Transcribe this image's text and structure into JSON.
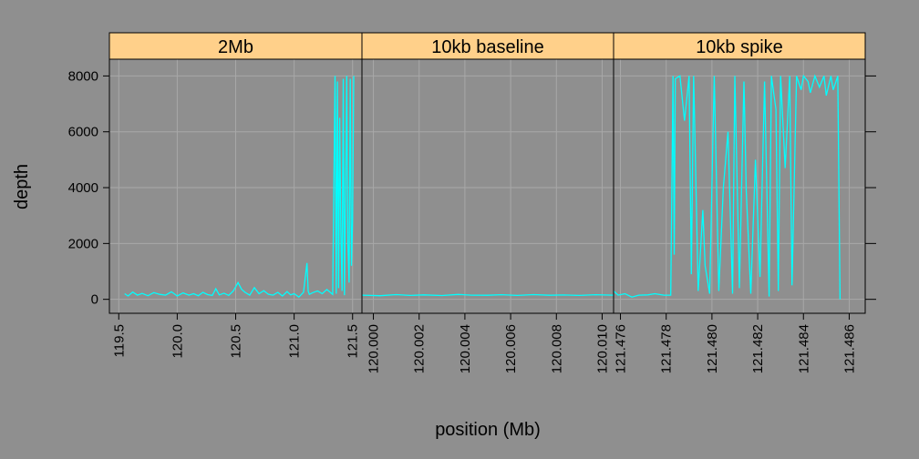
{
  "chart_data": {
    "type": "line",
    "ylabel": "depth",
    "xlabel": "position (Mb)",
    "ylim": [
      -500,
      8600
    ],
    "yticks": [
      0,
      2000,
      4000,
      6000,
      8000
    ],
    "grid": true,
    "colors": {
      "background": "#8f8f8f",
      "strip": "#ffd08a",
      "line": "#00ffff",
      "grid": "#a8a8a8"
    },
    "panels": [
      {
        "strip": "2Mb",
        "xlim": [
          119.42,
          121.58
        ],
        "xticks": [
          119.5,
          120.0,
          120.5,
          121.0,
          121.5
        ],
        "xtick_labels": [
          "119.5",
          "120.0",
          "120.5",
          "121.0",
          "121.5"
        ],
        "x": [
          119.55,
          119.58,
          119.62,
          119.66,
          119.7,
          119.75,
          119.8,
          119.85,
          119.9,
          119.95,
          120.0,
          120.05,
          120.1,
          120.14,
          120.18,
          120.22,
          120.26,
          120.3,
          120.33,
          120.36,
          120.4,
          120.44,
          120.48,
          120.5,
          120.52,
          120.55,
          120.58,
          120.62,
          120.66,
          120.7,
          120.74,
          120.78,
          120.82,
          120.86,
          120.9,
          120.94,
          120.97,
          121.0,
          121.04,
          121.08,
          121.11,
          121.12,
          121.13,
          121.16,
          121.2,
          121.24,
          121.28,
          121.33,
          121.35,
          121.36,
          121.37,
          121.38,
          121.39,
          121.4,
          121.41,
          121.42,
          121.43,
          121.44,
          121.45,
          121.46,
          121.47,
          121.48,
          121.49,
          121.5,
          121.51
        ],
        "y": [
          200,
          120,
          260,
          150,
          210,
          130,
          240,
          180,
          150,
          270,
          120,
          230,
          150,
          200,
          130,
          250,
          170,
          140,
          380,
          160,
          220,
          140,
          300,
          450,
          600,
          360,
          250,
          150,
          420,
          200,
          310,
          180,
          150,
          250,
          120,
          280,
          160,
          200,
          80,
          250,
          1300,
          300,
          180,
          240,
          300,
          200,
          350,
          180,
          8000,
          200,
          7800,
          400,
          6500,
          2400,
          300,
          7900,
          150,
          3500,
          8000,
          2000,
          600,
          7900,
          1200,
          2800,
          8000
        ]
      },
      {
        "strip": "10kb baseline",
        "xlim": [
          119.9995,
          120.0105
        ],
        "xticks": [
          120.0,
          120.002,
          120.004,
          120.006,
          120.008,
          120.01
        ],
        "xtick_labels": [
          "120.000",
          "120.002",
          "120.004",
          "120.006",
          "120.008",
          "120.010"
        ],
        "x": [
          119.9995,
          120.0003,
          120.001,
          120.0016,
          120.0022,
          120.003,
          120.0037,
          120.0043,
          120.005,
          120.0056,
          120.0063,
          120.007,
          120.0077,
          120.0083,
          120.009,
          120.0097,
          120.0105
        ],
        "y": [
          150,
          130,
          170,
          140,
          160,
          135,
          175,
          150,
          145,
          165,
          140,
          170,
          145,
          155,
          140,
          165,
          150
        ]
      },
      {
        "strip": "10kb spike",
        "xlim": [
          121.4757,
          121.4867
        ],
        "xticks": [
          121.476,
          121.478,
          121.48,
          121.482,
          121.484,
          121.486
        ],
        "xtick_labels": [
          "121.476",
          "121.478",
          "121.480",
          "121.482",
          "121.484",
          "121.486"
        ],
        "x": [
          121.4757,
          121.4759,
          121.4762,
          121.4765,
          121.4768,
          121.4772,
          121.4775,
          121.4779,
          121.4782,
          121.4783,
          121.47835,
          121.4784,
          121.4786,
          121.4788,
          121.479,
          121.4791,
          121.4792,
          121.4794,
          121.4796,
          121.4797,
          121.4799,
          121.4801,
          121.4803,
          121.4805,
          121.4807,
          121.4809,
          121.481,
          121.4812,
          121.4814,
          121.4815,
          121.4817,
          121.4819,
          121.4821,
          121.4823,
          121.4825,
          121.4826,
          121.4828,
          121.4829,
          121.483,
          121.4832,
          121.4834,
          121.4835,
          121.4837,
          121.4839,
          121.484,
          121.4842,
          121.4843,
          121.4845,
          121.4847,
          121.4849,
          121.485,
          121.4852,
          121.4853,
          121.4855,
          121.4856
        ],
        "y": [
          300,
          150,
          200,
          80,
          150,
          160,
          200,
          150,
          150,
          8000,
          1600,
          7900,
          8000,
          6400,
          8000,
          900,
          8000,
          300,
          3200,
          1200,
          200,
          8000,
          300,
          4000,
          6000,
          200,
          8000,
          400,
          7800,
          3900,
          200,
          5000,
          800,
          7800,
          100,
          8000,
          6800,
          300,
          8000,
          4700,
          8000,
          500,
          8000,
          7500,
          8000,
          7800,
          7400,
          8000,
          7600,
          8000,
          7300,
          8000,
          7500,
          8000,
          0
        ]
      }
    ]
  }
}
